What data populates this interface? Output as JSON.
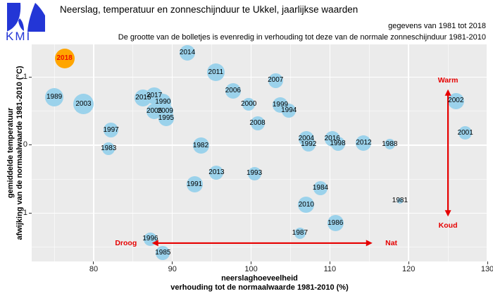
{
  "header": {
    "logo_text": "KMI",
    "title": "Neerslag, temperatuur en zonneschijnduur te Ukkel, jaarlijkse waarden",
    "data_range_note": "gegevens van 1981 tot 2018",
    "bubble_note": "De grootte van de bolletjes is evenredig in verhouding tot deze van de normale zonneschijnduur 1981-2010"
  },
  "colors": {
    "bubble": "#9BD2EB",
    "highlight_bubble": "#FFA500",
    "highlight_label": "#EE1100",
    "annotation": "#E60000",
    "panel_bg": "#EBEBEB",
    "grid": "#FFFFFF",
    "logo_blue": "#2336D6"
  },
  "chart_data": {
    "type": "scatter",
    "title": "Neerslag, temperatuur en zonneschijnduur te Ukkel, jaarlijkse waarden",
    "xlabel_lines": [
      "neerslaghoeveelheid",
      "verhouding tot de normaalwaarde 1981-2010 (%)"
    ],
    "ylabel_lines": [
      "gemiddelde temperatuur",
      "afwijking van de normaalwaarde 1981-2010 (°C)"
    ],
    "x_ticks": [
      80,
      90,
      100,
      110,
      120,
      130
    ],
    "x_minor_ticks": [
      75,
      85,
      95,
      105,
      115,
      125
    ],
    "y_ticks": [
      1,
      0,
      -1
    ],
    "y_minor_ticks": [
      0.5,
      -0.5,
      -1.5
    ],
    "xlim": [
      72.13,
      130.0
    ],
    "ylim": [
      -1.71,
      1.48
    ],
    "size_meaning": "radius in px, proportional to normal sunshine-duration ratio 1981-2010",
    "highlight_year": 2018,
    "points": [
      {
        "year": 1981,
        "x": 118.9,
        "y": -0.82,
        "r": 4
      },
      {
        "year": 1982,
        "x": 93.6,
        "y": -0.01,
        "r": 11.5
      },
      {
        "year": 1983,
        "x": 81.9,
        "y": -0.05,
        "r": 9
      },
      {
        "year": 1984,
        "x": 108.8,
        "y": -0.63,
        "r": 10
      },
      {
        "year": 1985,
        "x": 88.8,
        "y": -1.59,
        "r": 10
      },
      {
        "year": 1986,
        "x": 110.7,
        "y": -1.15,
        "r": 11.5
      },
      {
        "year": 1987,
        "x": 106.2,
        "y": -1.3,
        "r": 8
      },
      {
        "year": 1988,
        "x": 117.6,
        "y": 0.01,
        "r": 7.5
      },
      {
        "year": 1989,
        "x": 75.0,
        "y": 0.7,
        "r": 13
      },
      {
        "year": 1990,
        "x": 88.8,
        "y": 0.63,
        "r": 12
      },
      {
        "year": 1991,
        "x": 92.8,
        "y": -0.58,
        "r": 11.5
      },
      {
        "year": 1992,
        "x": 107.3,
        "y": 0.01,
        "r": 10
      },
      {
        "year": 1993,
        "x": 100.4,
        "y": -0.42,
        "r": 9.5
      },
      {
        "year": 1994,
        "x": 104.8,
        "y": 0.51,
        "r": 10
      },
      {
        "year": 1995,
        "x": 89.2,
        "y": 0.39,
        "r": 11
      },
      {
        "year": 1996,
        "x": 87.2,
        "y": -1.38,
        "r": 9.5
      },
      {
        "year": 1997,
        "x": 82.2,
        "y": 0.22,
        "r": 10.5
      },
      {
        "year": 1998,
        "x": 111.0,
        "y": 0.02,
        "r": 10
      },
      {
        "year": 1999,
        "x": 103.7,
        "y": 0.59,
        "r": 11
      },
      {
        "year": 2000,
        "x": 99.7,
        "y": 0.6,
        "r": 9
      },
      {
        "year": 2001,
        "x": 127.2,
        "y": 0.18,
        "r": 9.5
      },
      {
        "year": 2002,
        "x": 126.0,
        "y": 0.65,
        "r": 11.5
      },
      {
        "year": 2003,
        "x": 78.7,
        "y": 0.6,
        "r": 14.5
      },
      {
        "year": 2004,
        "x": 107.0,
        "y": 0.09,
        "r": 11
      },
      {
        "year": 2005,
        "x": 87.7,
        "y": 0.5,
        "r": 11
      },
      {
        "year": 2006,
        "x": 97.7,
        "y": 0.8,
        "r": 11
      },
      {
        "year": 2007,
        "x": 103.1,
        "y": 0.95,
        "r": 10.5
      },
      {
        "year": 2008,
        "x": 100.8,
        "y": 0.32,
        "r": 10
      },
      {
        "year": 2009,
        "x": 89.1,
        "y": 0.5,
        "r": 11
      },
      {
        "year": 2010,
        "x": 107.0,
        "y": -0.88,
        "r": 11.5
      },
      {
        "year": 2011,
        "x": 95.5,
        "y": 1.07,
        "r": 12.5
      },
      {
        "year": 2012,
        "x": 114.3,
        "y": 0.03,
        "r": 11
      },
      {
        "year": 2013,
        "x": 95.6,
        "y": -0.41,
        "r": 10
      },
      {
        "year": 2014,
        "x": 91.9,
        "y": 1.36,
        "r": 11
      },
      {
        "year": 2015,
        "x": 86.3,
        "y": 0.69,
        "r": 12
      },
      {
        "year": 2016,
        "x": 110.3,
        "y": 0.09,
        "r": 11
      },
      {
        "year": 2017,
        "x": 87.7,
        "y": 0.72,
        "r": 12
      },
      {
        "year": 2018,
        "x": 76.3,
        "y": 1.27,
        "r": 14
      }
    ],
    "annotations": {
      "h_arrow": {
        "x1": 87.4,
        "x2": 115.4,
        "y": -1.44,
        "label_left": "Droog",
        "label_left_x": 84.1,
        "label_right": "Nat",
        "label_right_x": 117.8
      },
      "v_arrow": {
        "x": 125.0,
        "y1": 0.82,
        "y2": -1.05,
        "label_top": "Warm",
        "label_top_y": 0.95,
        "label_bottom": "Koud",
        "label_bottom_y": -1.18
      }
    }
  }
}
